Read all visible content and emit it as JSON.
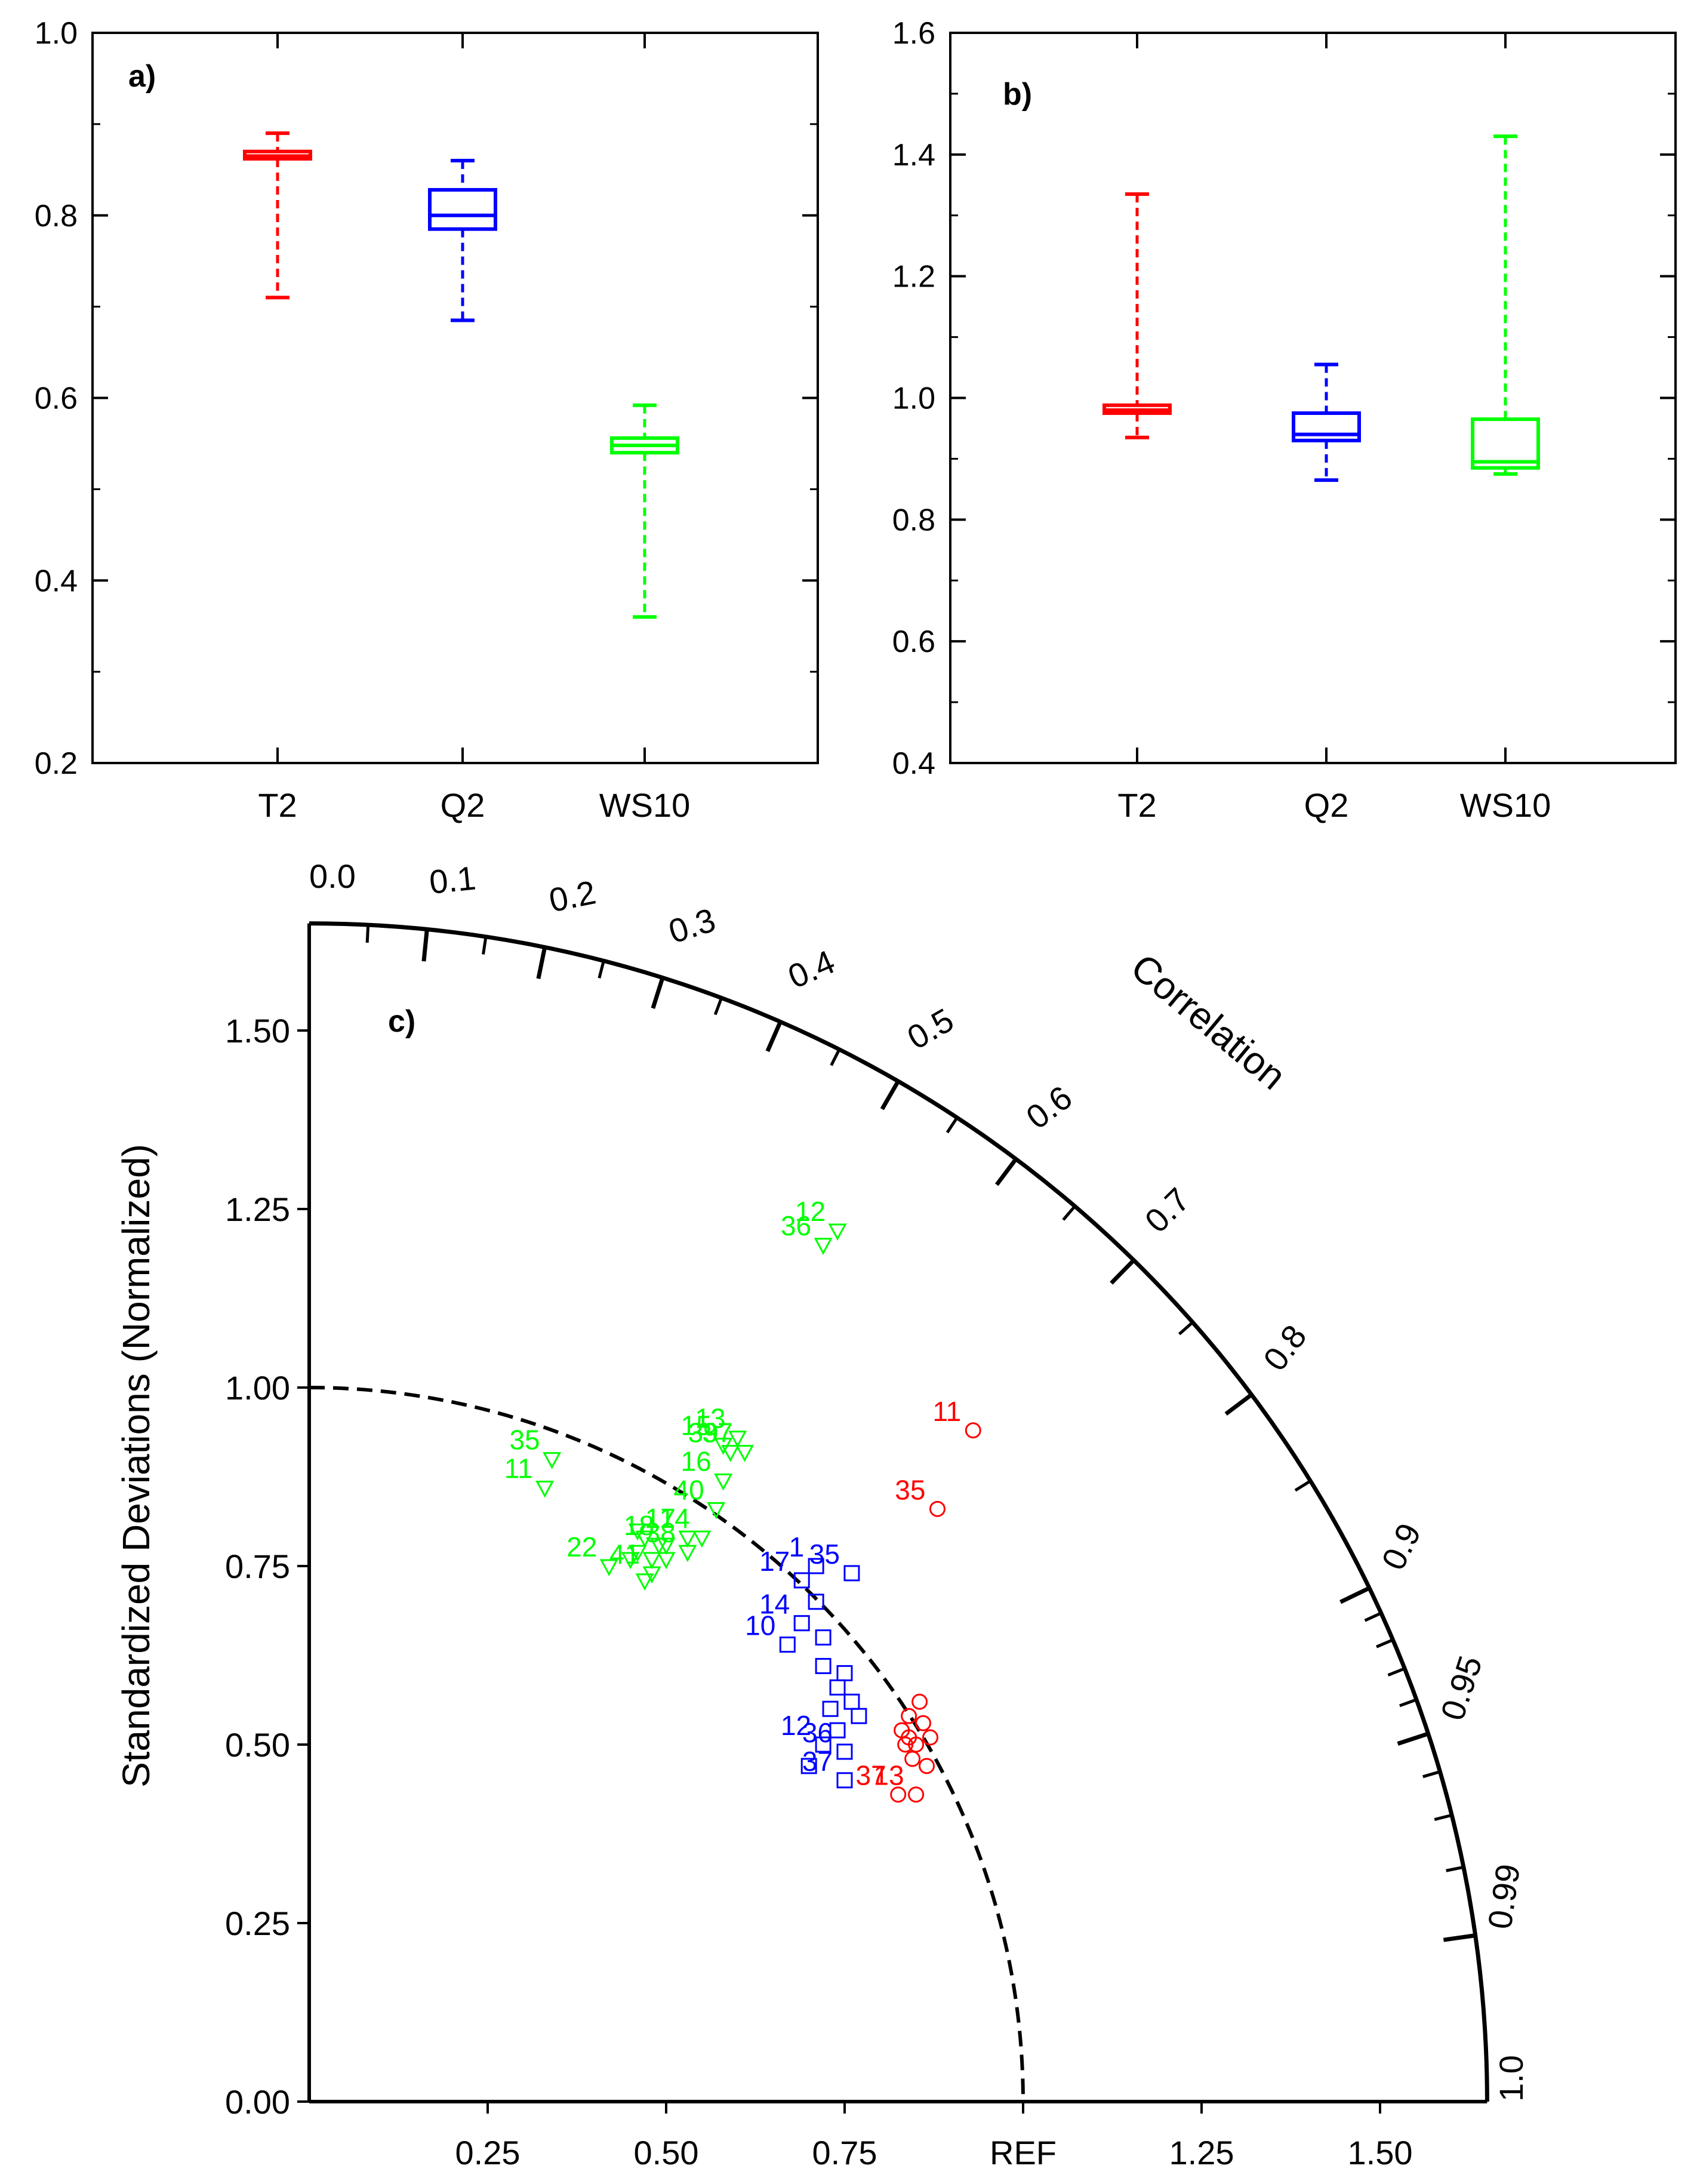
{
  "chart_data": [
    {
      "panel": "a)",
      "type": "box",
      "categories": [
        "T2",
        "Q2",
        "WS10"
      ],
      "colors": [
        "#ff0000",
        "#0000ff",
        "#00ff00"
      ],
      "ylim": [
        0.2,
        1.0
      ],
      "yticks": [
        "0.2",
        "0.4",
        "0.6",
        "0.8",
        "1.0"
      ],
      "boxes": [
        {
          "name": "T2",
          "min": 0.71,
          "q1": 0.862,
          "median": 0.865,
          "q3": 0.87,
          "max": 0.89
        },
        {
          "name": "Q2",
          "min": 0.685,
          "q1": 0.785,
          "median": 0.8,
          "q3": 0.828,
          "max": 0.86
        },
        {
          "name": "WS10",
          "min": 0.36,
          "q1": 0.54,
          "median": 0.548,
          "q3": 0.556,
          "max": 0.592
        }
      ]
    },
    {
      "panel": "b)",
      "type": "box",
      "categories": [
        "T2",
        "Q2",
        "WS10"
      ],
      "colors": [
        "#ff0000",
        "#0000ff",
        "#00ff00"
      ],
      "ylim": [
        0.4,
        1.6
      ],
      "yticks": [
        "0.4",
        "0.6",
        "0.8",
        "1.0",
        "1.2",
        "1.4",
        "1.6"
      ],
      "boxes": [
        {
          "name": "T2",
          "min": 0.935,
          "q1": 0.975,
          "median": 0.98,
          "q3": 0.988,
          "max": 1.335
        },
        {
          "name": "Q2",
          "min": 0.865,
          "q1": 0.93,
          "median": 0.94,
          "q3": 0.975,
          "max": 1.055
        },
        {
          "name": "WS10",
          "min": 0.875,
          "q1": 0.885,
          "median": 0.895,
          "q3": 0.965,
          "max": 1.43
        }
      ]
    },
    {
      "panel": "c)",
      "type": "taylor",
      "ylabel": "Standardized Deviations (Normalized)",
      "arc_label": "Correlation",
      "xticks": [
        "0.25",
        "0.50",
        "0.75",
        "REF",
        "1.25",
        "1.50"
      ],
      "yticks": [
        "0.00",
        "0.25",
        "0.50",
        "0.75",
        "1.00",
        "1.25",
        "1.50"
      ],
      "corr_labels": [
        "0.0",
        "0.1",
        "0.2",
        "0.3",
        "0.4",
        "0.5",
        "0.6",
        "0.7",
        "0.8",
        "0.9",
        "0.95",
        "0.99",
        "1.0"
      ],
      "max_std": 1.65,
      "series": [
        {
          "name": "T2",
          "color": "#ff0000",
          "marker": "circle",
          "points": [
            {
              "x": 0.93,
              "y": 0.94,
              "label": "11"
            },
            {
              "x": 0.88,
              "y": 0.83,
              "label": "35"
            },
            {
              "x": 0.85,
              "y": 0.43,
              "label": "13"
            },
            {
              "x": 0.825,
              "y": 0.43,
              "label": "37"
            },
            {
              "x": 0.83,
              "y": 0.52,
              "label": ""
            },
            {
              "x": 0.84,
              "y": 0.54,
              "label": ""
            },
            {
              "x": 0.85,
              "y": 0.5,
              "label": ""
            },
            {
              "x": 0.86,
              "y": 0.53,
              "label": ""
            },
            {
              "x": 0.845,
              "y": 0.48,
              "label": ""
            },
            {
              "x": 0.855,
              "y": 0.56,
              "label": ""
            },
            {
              "x": 0.87,
              "y": 0.51,
              "label": ""
            },
            {
              "x": 0.835,
              "y": 0.5,
              "label": ""
            },
            {
              "x": 0.865,
              "y": 0.47,
              "label": ""
            },
            {
              "x": 0.84,
              "y": 0.51,
              "label": ""
            }
          ]
        },
        {
          "name": "Q2",
          "color": "#0000ff",
          "marker": "square",
          "points": [
            {
              "x": 0.71,
              "y": 0.75,
              "label": "1"
            },
            {
              "x": 0.69,
              "y": 0.73,
              "label": "17"
            },
            {
              "x": 0.76,
              "y": 0.74,
              "label": "35"
            },
            {
              "x": 0.69,
              "y": 0.67,
              "label": "14"
            },
            {
              "x": 0.67,
              "y": 0.64,
              "label": "10"
            },
            {
              "x": 0.72,
              "y": 0.5,
              "label": "12"
            },
            {
              "x": 0.75,
              "y": 0.49,
              "label": "36"
            },
            {
              "x": 0.75,
              "y": 0.45,
              "label": "37"
            },
            {
              "x": 0.72,
              "y": 0.61,
              "label": ""
            },
            {
              "x": 0.74,
              "y": 0.58,
              "label": ""
            },
            {
              "x": 0.76,
              "y": 0.56,
              "label": ""
            },
            {
              "x": 0.73,
              "y": 0.55,
              "label": ""
            },
            {
              "x": 0.75,
              "y": 0.6,
              "label": ""
            },
            {
              "x": 0.77,
              "y": 0.54,
              "label": ""
            },
            {
              "x": 0.72,
              "y": 0.65,
              "label": ""
            },
            {
              "x": 0.71,
              "y": 0.7,
              "label": ""
            },
            {
              "x": 0.7,
              "y": 0.47,
              "label": ""
            },
            {
              "x": 0.74,
              "y": 0.52,
              "label": ""
            }
          ]
        },
        {
          "name": "WS10",
          "color": "#00ff00",
          "marker": "triangle-down",
          "points": [
            {
              "x": 0.74,
              "y": 1.22,
              "label": "12"
            },
            {
              "x": 0.72,
              "y": 1.2,
              "label": "36"
            },
            {
              "x": 0.33,
              "y": 0.86,
              "label": "11"
            },
            {
              "x": 0.34,
              "y": 0.9,
              "label": "35"
            },
            {
              "x": 0.58,
              "y": 0.92,
              "label": "15"
            },
            {
              "x": 0.6,
              "y": 0.93,
              "label": "13"
            },
            {
              "x": 0.59,
              "y": 0.91,
              "label": "39"
            },
            {
              "x": 0.61,
              "y": 0.91,
              "label": "37"
            },
            {
              "x": 0.58,
              "y": 0.87,
              "label": "16"
            },
            {
              "x": 0.57,
              "y": 0.83,
              "label": "40"
            },
            {
              "x": 0.5,
              "y": 0.78,
              "label": "18"
            },
            {
              "x": 0.53,
              "y": 0.79,
              "label": "17"
            },
            {
              "x": 0.55,
              "y": 0.79,
              "label": "14"
            },
            {
              "x": 0.53,
              "y": 0.77,
              "label": "38"
            },
            {
              "x": 0.42,
              "y": 0.75,
              "label": "22"
            },
            {
              "x": 0.48,
              "y": 0.74,
              "label": "41"
            },
            {
              "x": 0.46,
              "y": 0.77,
              "label": ""
            },
            {
              "x": 0.47,
              "y": 0.79,
              "label": ""
            },
            {
              "x": 0.48,
              "y": 0.76,
              "label": ""
            },
            {
              "x": 0.49,
              "y": 0.78,
              "label": ""
            },
            {
              "x": 0.45,
              "y": 0.76,
              "label": ""
            },
            {
              "x": 0.47,
              "y": 0.73,
              "label": ""
            },
            {
              "x": 0.5,
              "y": 0.76,
              "label": ""
            },
            {
              "x": 0.46,
              "y": 0.8,
              "label": ""
            }
          ]
        }
      ]
    }
  ]
}
